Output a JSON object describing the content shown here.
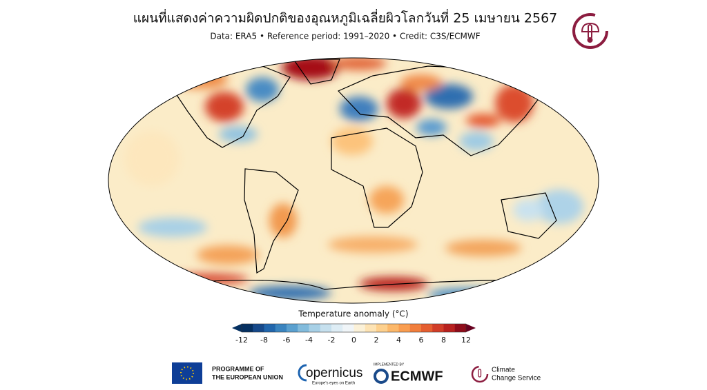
{
  "header": {
    "title": "แผนที่แสดงค่าความผิดปกติของอุณหภูมิเฉลี่ยผิวโลกวันที่ 25 เมษายน 2567",
    "subtitle": "Data: ERA5 • Reference period: 1991–2020 • Credit: C3S/ECMWF"
  },
  "colorbar": {
    "label": "Temperature anomaly (°C)",
    "ticks": [
      -12,
      -8,
      -6,
      -4,
      -2,
      0,
      2,
      4,
      6,
      8,
      12
    ],
    "colors": [
      "#053061",
      "#16498a",
      "#2166ac",
      "#3a84bf",
      "#5aa0cf",
      "#82bbdc",
      "#a7d0e6",
      "#c6e0ee",
      "#deedf5",
      "#f0f5f8",
      "#fbf1d8",
      "#fde3b4",
      "#fdd08d",
      "#fcb86a",
      "#f99d50",
      "#f17e3c",
      "#e55e30",
      "#d13d28",
      "#b8211f",
      "#8f0c1a"
    ],
    "under_color": "#053061",
    "over_color": "#67001f"
  },
  "footer": {
    "eu_line1": "PROGRAMME OF",
    "eu_line2": "THE EUROPEAN UNION",
    "copernicus": "opernicus",
    "copernicus_tag": "Europe's eyes on Earth",
    "implemented_by": "IMPLEMENTED BY",
    "ecmwf": "ECMWF",
    "c3s_line1": "Climate",
    "c3s_line2": "Change Service"
  }
}
